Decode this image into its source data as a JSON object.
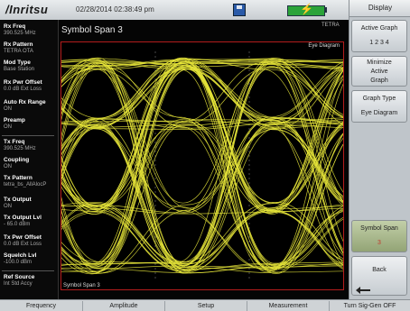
{
  "header": {
    "logo": "/Inritsu",
    "datetime": "02/28/2014 02:38:49 pm"
  },
  "graph": {
    "title": "Symbol Span  3",
    "standard": "TETRA",
    "plot_label": "Eye Diagram",
    "footer_label": "Symbol Span 3"
  },
  "params": [
    {
      "label": "Rx Freq",
      "value": "390.525 MHz"
    },
    {
      "label": "Rx Pattern",
      "value": "TETRA OTA"
    },
    {
      "label": "Mod Type",
      "value": "Base Station"
    },
    {
      "label": "Rx Pwr Offset",
      "value": "0.0 dB Ext Loss"
    },
    {
      "label": "Auto Rx Range",
      "value": "ON"
    },
    {
      "label": "Preamp",
      "value": "ON"
    },
    {
      "label": "Tx Freq",
      "value": "390.525 MHz"
    },
    {
      "label": "Coupling",
      "value": "ON"
    },
    {
      "label": "Tx Pattern",
      "value": "tetra_bs_AllAlocP"
    },
    {
      "label": "Tx Output",
      "value": "ON"
    },
    {
      "label": "Tx Output Lvl",
      "value": "- 65.0 dBm"
    },
    {
      "label": "Tx Pwr Offset",
      "value": "0.0 dB Ext Loss"
    },
    {
      "label": "Squelch Lvl",
      "value": "-100.0 dBm"
    },
    {
      "label": "Ref Source",
      "value": "Int Std Accy"
    }
  ],
  "menu": {
    "title": "Display",
    "active_graph": {
      "label": "Active Graph",
      "value": "1 2 3 4"
    },
    "minimize": {
      "line1": "Minimize",
      "line2": "Active",
      "line3": "Graph"
    },
    "graph_type": {
      "label": "Graph Type",
      "value": "Eye Diagram"
    },
    "symbol_span": {
      "label": "Symbol Span",
      "value": "3"
    },
    "back": {
      "label": "Back"
    }
  },
  "bottom_menu": [
    "Frequency",
    "Amplitude",
    "Setup",
    "Measurement",
    "Turn Sig-Gen OFF"
  ],
  "colors": {
    "trace": "#e8e63a",
    "plot_border": "#b31c1c",
    "background": "#050505"
  }
}
